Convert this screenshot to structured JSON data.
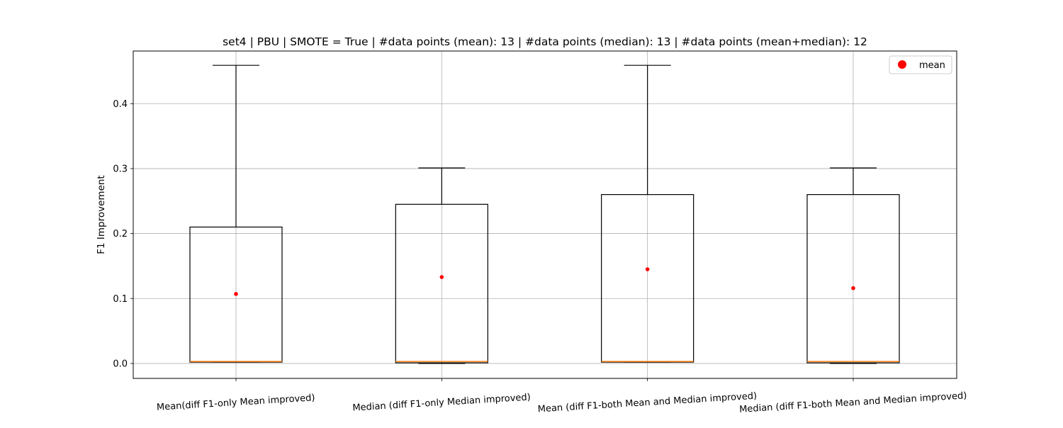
{
  "chart_data": {
    "type": "box",
    "title": "set4 | PBU | SMOTE = True | #data points (mean): 13 | #data points (median): 13 | #data points (mean+median): 12",
    "xlabel": "",
    "ylabel": "F1 Improvement",
    "ylim": [
      -0.023,
      0.481
    ],
    "yticks": [
      0.0,
      0.1,
      0.2,
      0.3,
      0.4
    ],
    "ytick_labels": [
      "0.0",
      "0.1",
      "0.2",
      "0.3",
      "0.4"
    ],
    "grid": true,
    "legend": {
      "placement": "top-right",
      "entries": [
        {
          "label": "mean",
          "color": "#ff0000",
          "marker": "circle"
        }
      ]
    },
    "colors": {
      "box": "#000000",
      "median": "#ff7f0e",
      "mean": "#ff0000",
      "grid": "#b0b0b0"
    },
    "categories": [
      "Mean(diff F1-only Mean improved)",
      "Median (diff F1-only Median improved)",
      "Mean (diff F1-both Mean and Median improved)",
      "Median (diff F1-both Mean and Median improved)"
    ],
    "boxes": [
      {
        "whisker_low": 0.002,
        "q1": 0.002,
        "median": 0.003,
        "q3": 0.21,
        "whisker_high": 0.459,
        "mean": 0.107
      },
      {
        "whisker_low": 0.0,
        "q1": 0.001,
        "median": 0.003,
        "q3": 0.245,
        "whisker_high": 0.301,
        "mean": 0.133
      },
      {
        "whisker_low": 0.002,
        "q1": 0.002,
        "median": 0.003,
        "q3": 0.26,
        "whisker_high": 0.459,
        "mean": 0.145
      },
      {
        "whisker_low": 0.0,
        "q1": 0.001,
        "median": 0.003,
        "q3": 0.26,
        "whisker_high": 0.301,
        "mean": 0.116
      }
    ]
  }
}
